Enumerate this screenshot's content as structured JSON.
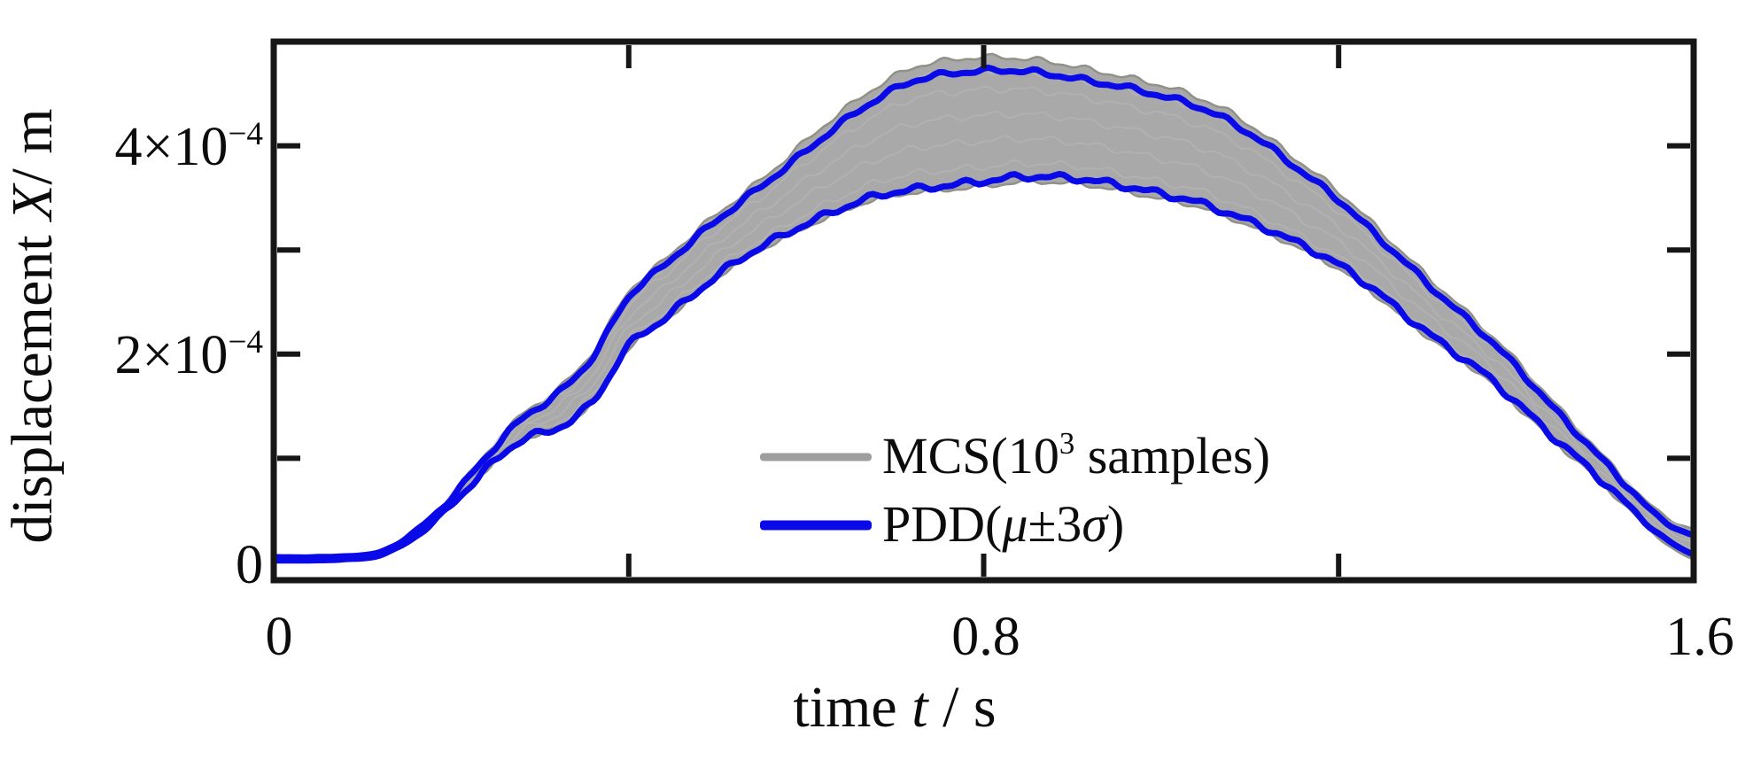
{
  "figure": {
    "background": "#ffffff"
  },
  "chart_data": {
    "type": "area",
    "title": "",
    "xlabel_parts": {
      "pre": "time ",
      "italic": "t",
      "post": " / s"
    },
    "ylabel_parts": {
      "pre": "displacement ",
      "italic": "X",
      "post": "/ m"
    },
    "xlim": [
      0,
      1.6
    ],
    "ylim_e4": [
      -0.17,
      5.0
    ],
    "units_note": "displacement values given in units of 1e-4 m",
    "grid": "off",
    "x_major_ticks": [
      0.4,
      0.8,
      1.2
    ],
    "y_major_ticks_e4": [
      1,
      2,
      3,
      4
    ],
    "x_tick_labels": [
      {
        "text": "0",
        "t": 0
      },
      {
        "text": "0.8",
        "t": 0.8
      },
      {
        "text": "1.6",
        "t": 1.6
      }
    ],
    "y_tick_labels": [
      {
        "base": "4×10",
        "sup": "−4",
        "v_e4": 4
      },
      {
        "base": "2×10",
        "sup": "−4",
        "v_e4": 2
      },
      {
        "base": "0",
        "sup": "",
        "v_e4": 0
      }
    ],
    "colors": {
      "pdd_blue": "#0a0ae8",
      "mcs_gray_fill": "#a9a9a9",
      "mcs_gray_edge": "#919188",
      "mcs_gray_streak": "#b8b8b8",
      "legend_gray": "#9e9e9e",
      "axis_black": "#161616"
    },
    "series": [
      {
        "name": "MCS(10^3 samples)",
        "kind": "monte-carlo-ensemble-band",
        "color": "#9e9e9e"
      },
      {
        "name": "PDD(μ±3σ)",
        "kind": "mean-plus-minus-3-sigma-bounds",
        "color": "#0a0ae8"
      }
    ],
    "band": {
      "t": [
        0.0,
        0.04,
        0.08,
        0.12,
        0.16,
        0.2,
        0.24,
        0.28,
        0.32,
        0.36,
        0.4,
        0.44,
        0.48,
        0.52,
        0.56,
        0.6,
        0.64,
        0.68,
        0.72,
        0.76,
        0.8,
        0.84,
        0.88,
        0.92,
        0.96,
        1.0,
        1.04,
        1.08,
        1.12,
        1.16,
        1.2,
        1.24,
        1.28,
        1.32,
        1.36,
        1.4,
        1.44,
        1.48,
        1.52,
        1.56,
        1.6
      ],
      "pdd_upper_e4": [
        0.05,
        0.05,
        0.06,
        0.1,
        0.3,
        0.62,
        1.02,
        1.38,
        1.62,
        1.98,
        2.55,
        2.85,
        3.15,
        3.42,
        3.68,
        3.95,
        4.22,
        4.45,
        4.62,
        4.69,
        4.72,
        4.72,
        4.68,
        4.62,
        4.56,
        4.48,
        4.38,
        4.22,
        4.0,
        3.74,
        3.48,
        3.16,
        2.84,
        2.52,
        2.22,
        1.88,
        1.5,
        1.14,
        0.78,
        0.44,
        0.26
      ],
      "pdd_lower_e4": [
        0.02,
        0.02,
        0.03,
        0.07,
        0.25,
        0.55,
        0.9,
        1.18,
        1.29,
        1.55,
        2.08,
        2.34,
        2.62,
        2.88,
        3.08,
        3.25,
        3.4,
        3.52,
        3.58,
        3.62,
        3.66,
        3.7,
        3.7,
        3.67,
        3.61,
        3.54,
        3.46,
        3.34,
        3.2,
        3.04,
        2.86,
        2.62,
        2.34,
        2.08,
        1.84,
        1.54,
        1.22,
        0.92,
        0.6,
        0.28,
        0.08
      ],
      "mcs_upper_extra_e4": [
        0,
        0,
        0,
        0,
        0,
        0.02,
        0.03,
        0.04,
        0.04,
        0.05,
        0.05,
        0.05,
        0.06,
        0.06,
        0.07,
        0.1,
        0.11,
        0.12,
        0.13,
        0.13,
        0.13,
        0.12,
        0.12,
        0.11,
        0.1,
        0.1,
        0.09,
        0.09,
        0.08,
        0.08,
        0.08,
        0.08,
        0.07,
        0.07,
        0.06,
        0.06,
        0.06,
        0.05,
        0.04,
        0.05,
        0.06
      ],
      "mcs_lower_extra_e4": [
        0,
        0,
        0,
        0,
        0,
        0,
        0,
        0,
        0,
        0,
        0.02,
        0.02,
        0.02,
        0.02,
        0.03,
        0.03,
        0.03,
        0.03,
        0.03,
        0.04,
        0.05,
        0.05,
        0.05,
        0.05,
        0.05,
        0.05,
        0.04,
        0.04,
        0.04,
        0.04,
        0.04,
        0.04,
        0.04,
        0.03,
        0.03,
        0.03,
        0.03,
        0.03,
        0.03,
        0.04,
        0.05
      ]
    },
    "legend": {
      "position": "inside-lower-center",
      "items": [
        {
          "label_pre": "MCS(10",
          "label_sup": "3",
          "label_post": " samples)",
          "swatch_color": "#9e9e9e"
        },
        {
          "label_pre": "PDD(",
          "mu": "μ",
          "mid": "±3",
          "sigma": "σ",
          "label_post": ")",
          "swatch_color": "#0a0ae8"
        }
      ]
    }
  }
}
